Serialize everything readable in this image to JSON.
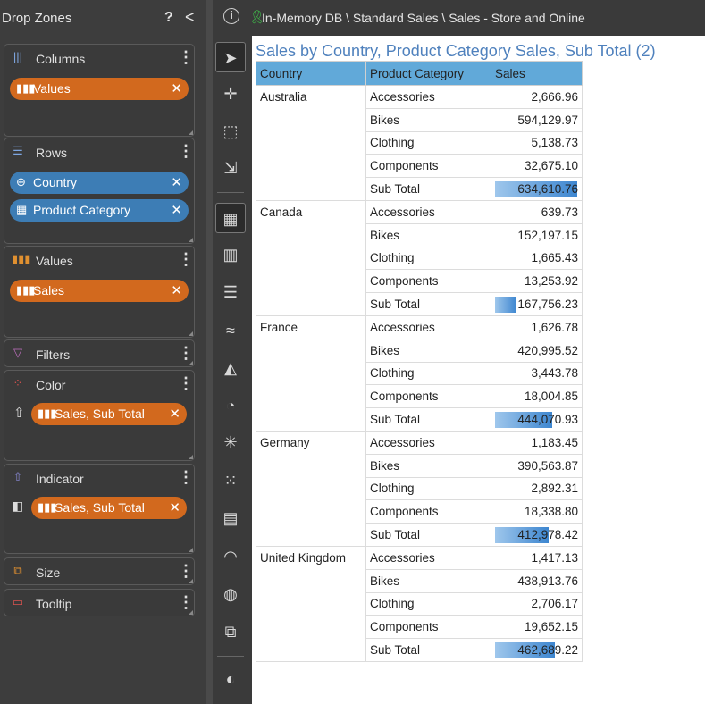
{
  "left_panel": {
    "title": "Drop Zones",
    "help": "?",
    "collapse": "<",
    "zones": {
      "columns": {
        "label": "Columns",
        "pills": [
          "Values"
        ]
      },
      "rows": {
        "label": "Rows",
        "pills": [
          "Country",
          "Product Category"
        ]
      },
      "values": {
        "label": "Values",
        "pills": [
          "Sales"
        ]
      },
      "filters": {
        "label": "Filters"
      },
      "color": {
        "label": "Color",
        "pills": [
          "Sales, Sub Total"
        ]
      },
      "indicator": {
        "label": "Indicator",
        "pills": [
          "Sales, Sub Total"
        ]
      },
      "size": {
        "label": "Size"
      },
      "tooltip": {
        "label": "Tooltip"
      }
    }
  },
  "topbar": {
    "info": "i",
    "path": "In-Memory DB \\ Standard Sales \\ Sales - Store and Online"
  },
  "report": {
    "title": "Sales by Country, Product Category Sales, Sub Total (2)",
    "headers": [
      "Country",
      "Product Category",
      "Sales"
    ],
    "groups": [
      {
        "country": "Australia",
        "rows": [
          [
            "Accessories",
            "2,666.96"
          ],
          [
            "Bikes",
            "594,129.97"
          ],
          [
            "Clothing",
            "5,138.73"
          ],
          [
            "Components",
            "32,675.10"
          ],
          [
            "Sub Total",
            "634,610.76"
          ]
        ],
        "subtotal_fraction": 1.0
      },
      {
        "country": "Canada",
        "rows": [
          [
            "Accessories",
            "639.73"
          ],
          [
            "Bikes",
            "152,197.15"
          ],
          [
            "Clothing",
            "1,665.43"
          ],
          [
            "Components",
            "13,253.92"
          ],
          [
            "Sub Total",
            "167,756.23"
          ]
        ],
        "subtotal_fraction": 0.264
      },
      {
        "country": "France",
        "rows": [
          [
            "Accessories",
            "1,626.78"
          ],
          [
            "Bikes",
            "420,995.52"
          ],
          [
            "Clothing",
            "3,443.78"
          ],
          [
            "Components",
            "18,004.85"
          ],
          [
            "Sub Total",
            "444,070.93"
          ]
        ],
        "subtotal_fraction": 0.7
      },
      {
        "country": "Germany",
        "rows": [
          [
            "Accessories",
            "1,183.45"
          ],
          [
            "Bikes",
            "390,563.87"
          ],
          [
            "Clothing",
            "2,892.31"
          ],
          [
            "Components",
            "18,338.80"
          ],
          [
            "Sub Total",
            "412,978.42"
          ]
        ],
        "subtotal_fraction": 0.651
      },
      {
        "country": "United Kingdom",
        "rows": [
          [
            "Accessories",
            "1,417.13"
          ],
          [
            "Bikes",
            "438,913.76"
          ],
          [
            "Clothing",
            "2,706.17"
          ],
          [
            "Components",
            "19,652.15"
          ],
          [
            "Sub Total",
            "462,689.22"
          ]
        ],
        "subtotal_fraction": 0.729
      }
    ]
  },
  "colors": {
    "accent_orange": "#d2691e",
    "accent_blue": "#3d7db5",
    "header_blue": "#61a9d9",
    "title_blue": "#4f81bd"
  }
}
